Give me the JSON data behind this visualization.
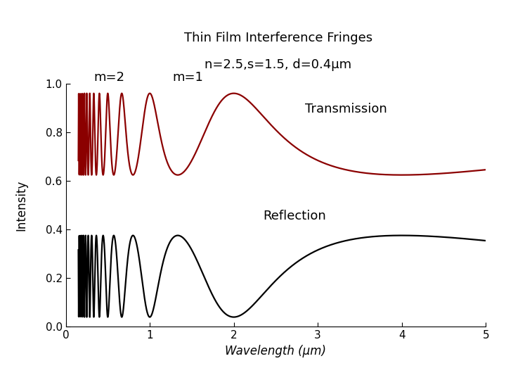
{
  "title_line1": "Thin Film Interference Fringes",
  "title_line2": "n=2.5,s=1.5, d=0.4μm",
  "xlabel": "Wavelength (μm)",
  "ylabel": "Intensity",
  "n": 2.5,
  "s": 1.5,
  "d": 0.4,
  "lambda_min": 0.15,
  "lambda_max": 5.0,
  "xlim": [
    0,
    5
  ],
  "ylim": [
    0,
    1.0
  ],
  "transmission_color": "#8B0000",
  "reflection_color": "#000000",
  "background_color": "#ffffff",
  "m2_label": "m=2",
  "m1_label": "m=1",
  "transmission_label": "Transmission",
  "reflection_label": "Reflection",
  "xticks": [
    0,
    1,
    2,
    3,
    4,
    5
  ],
  "yticks": [
    0,
    0.2,
    0.4,
    0.6,
    0.8,
    1
  ]
}
